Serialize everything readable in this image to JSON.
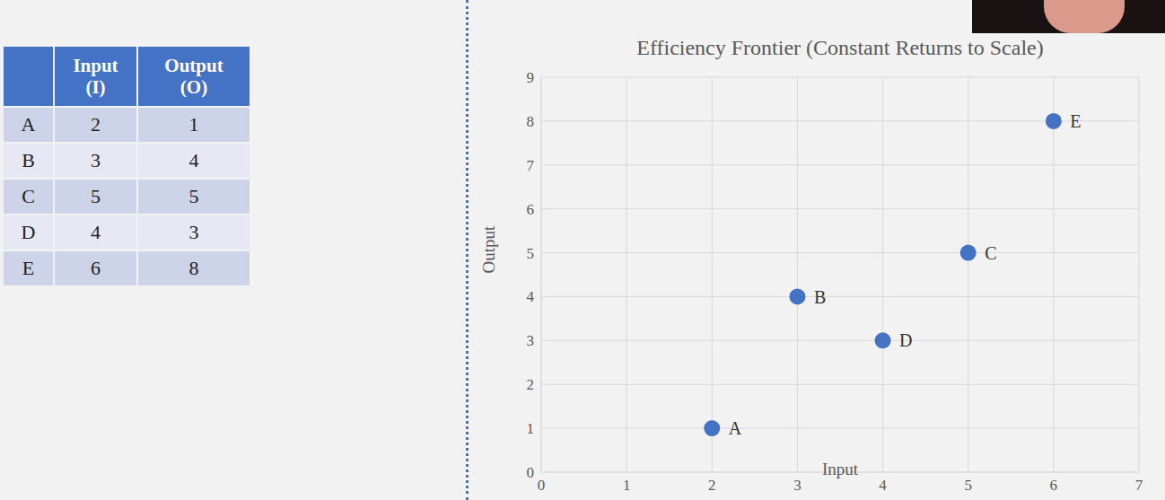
{
  "chart_data": {
    "type": "scatter",
    "title": "Efficiency Frontier (Constant Returns to Scale)",
    "x_label": "Input",
    "y_label": "Output",
    "x": [
      2,
      3,
      5,
      4,
      6
    ],
    "values": [
      1,
      4,
      5,
      3,
      8
    ],
    "labels": [
      "A",
      "B",
      "C",
      "D",
      "E"
    ],
    "color": "#4472c4",
    "marker": "circle",
    "xlim": [
      0,
      7
    ],
    "xticks": [
      0,
      1,
      2,
      3,
      4,
      5,
      6,
      7
    ],
    "ylim": [
      0,
      9
    ],
    "yticks": [
      0,
      1,
      2,
      3,
      4,
      5,
      6,
      7,
      8,
      9
    ],
    "grid": true
  },
  "table": {
    "header": [
      "",
      "Input (I)",
      "Output (O)"
    ],
    "rows": [
      [
        "A",
        2,
        1
      ],
      [
        "B",
        3,
        4
      ],
      [
        "C",
        5,
        5
      ],
      [
        "D",
        4,
        3
      ],
      [
        "E",
        6,
        8
      ]
    ]
  }
}
